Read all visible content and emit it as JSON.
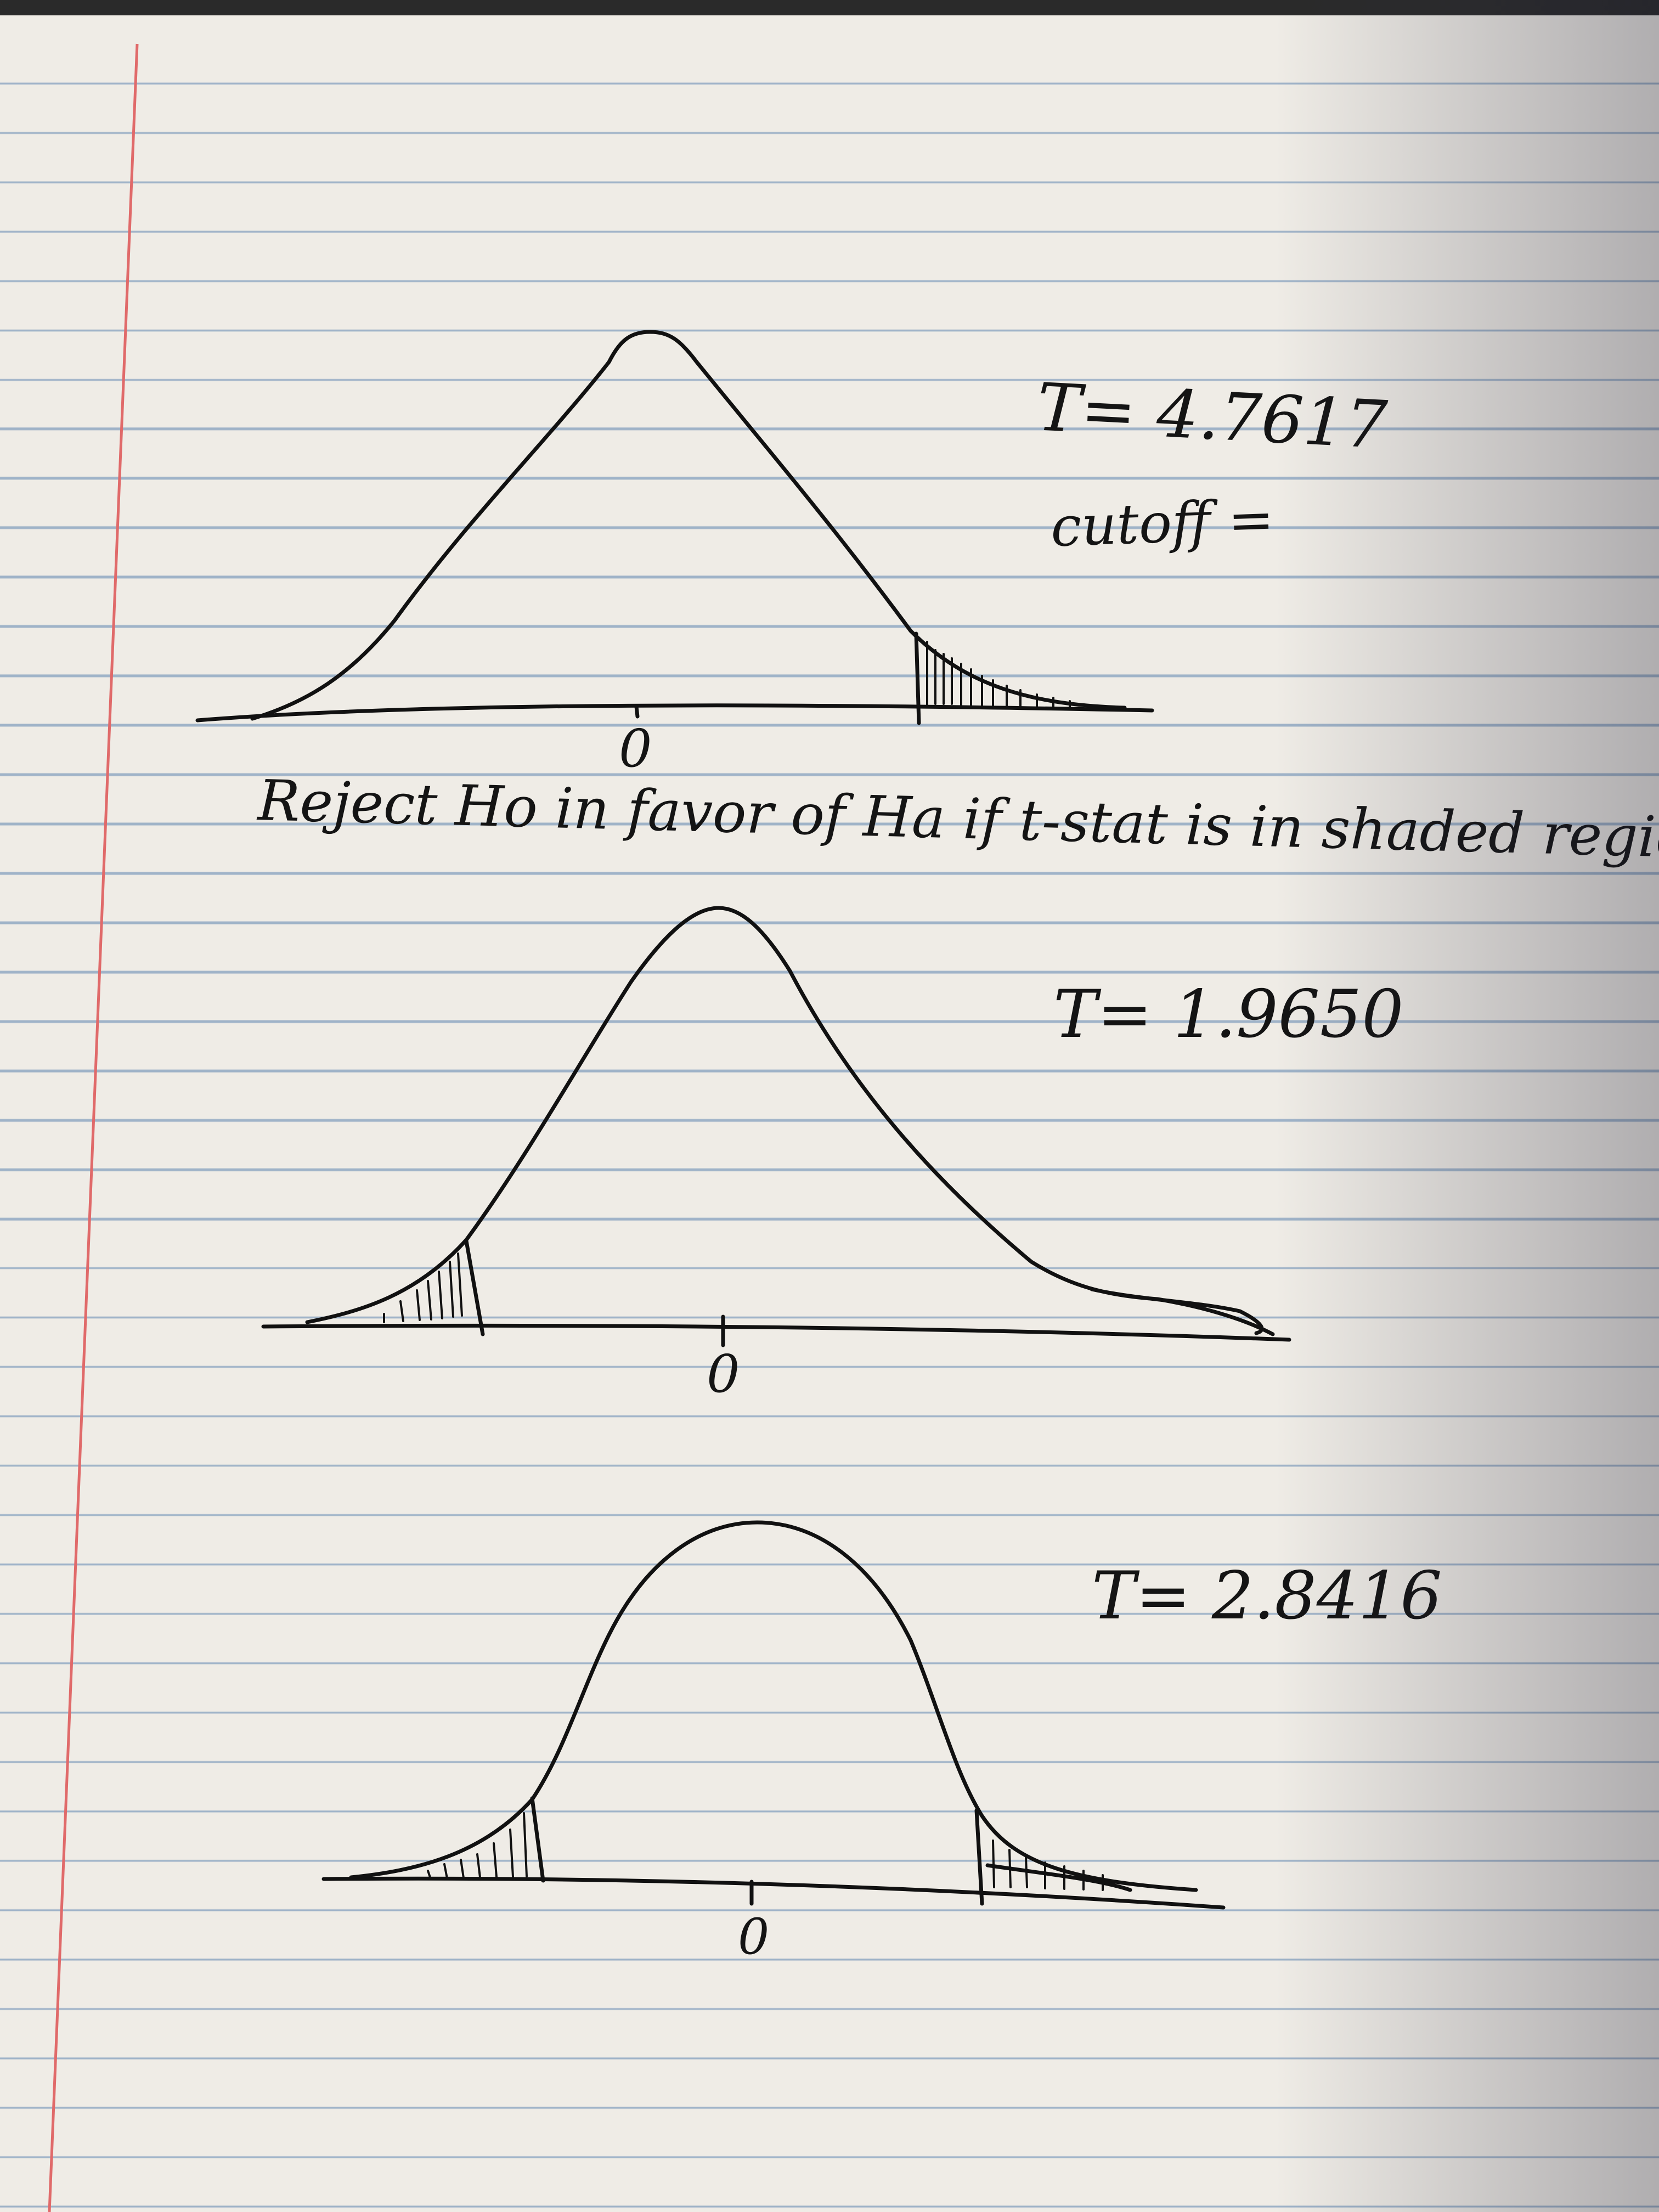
{
  "note": {
    "statement": "Reject Ho in favor of Ha if t-stat is in shaded region",
    "diagrams": [
      {
        "tail": "right",
        "center_label": "0",
        "t_label": "T= 4.7617",
        "extra_label": "cutoff ="
      },
      {
        "tail": "left",
        "center_label": "0",
        "t_label": "T= 1.9650",
        "extra_label": ""
      },
      {
        "tail": "two-sided",
        "center_label": "0",
        "t_label": "T= 2.8416",
        "extra_label": ""
      }
    ]
  },
  "colors": {
    "ink": "#111111",
    "paper": "#efece6",
    "rule": "#9fb3c8",
    "margin": "#e06a6a"
  }
}
